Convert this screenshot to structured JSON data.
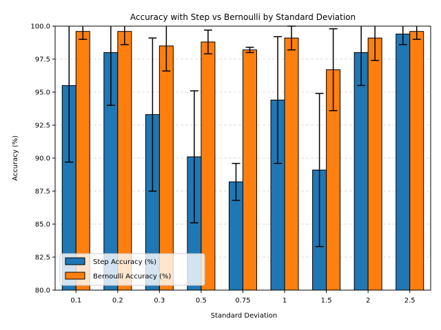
{
  "chart_data": {
    "type": "bar",
    "title": "Accuracy with Step vs Bernoulli by Standard Deviation",
    "xlabel": "Standard Deviation",
    "ylabel": "Accuracy (%)",
    "categories": [
      "0.1",
      "0.2",
      "0.3",
      "0.5",
      "0.75",
      "1",
      "1.5",
      "2",
      "2.5"
    ],
    "ylim": [
      80.0,
      100.0
    ],
    "yticks": [
      "80.0",
      "82.5",
      "85.0",
      "87.5",
      "90.0",
      "92.5",
      "95.0",
      "97.5",
      "100.0"
    ],
    "grid": "y-dashed",
    "legend_position": "lower-left",
    "series": [
      {
        "name": "Step Accuracy (%)",
        "color": "#1f77b4",
        "values": [
          95.5,
          98.0,
          93.3,
          90.1,
          88.2,
          94.4,
          89.1,
          98.0,
          99.4
        ],
        "errors": [
          5.8,
          4.0,
          5.8,
          5.0,
          1.4,
          4.8,
          5.8,
          2.5,
          0.8
        ]
      },
      {
        "name": "Bernoulli Accuracy (%)",
        "color": "#ff7f0e",
        "values": [
          99.6,
          99.6,
          98.5,
          98.8,
          98.2,
          99.1,
          96.7,
          99.1,
          99.6
        ],
        "errors": [
          0.6,
          1.0,
          1.9,
          0.9,
          0.2,
          0.9,
          3.1,
          1.7,
          0.6
        ]
      }
    ]
  }
}
